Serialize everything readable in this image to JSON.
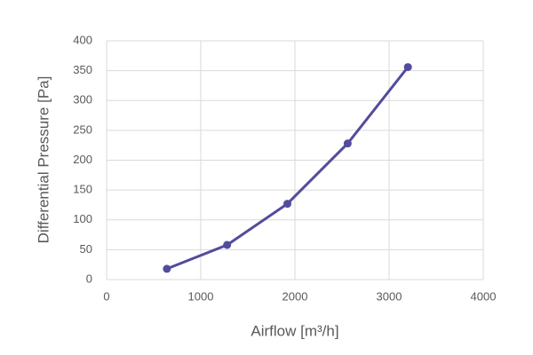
{
  "chart_data": {
    "type": "line",
    "xlabel": "Airflow [m³/h]",
    "ylabel": "Differential Pressure [Pa]",
    "x": [
      640,
      1280,
      1920,
      2560,
      3200
    ],
    "values": [
      18,
      58,
      127,
      228,
      356
    ],
    "color": "#524c9c",
    "xlim": [
      0,
      4000
    ],
    "xticks": [
      0,
      1000,
      2000,
      3000,
      4000
    ],
    "ylim": [
      0,
      400
    ],
    "yticks": [
      0,
      50,
      100,
      150,
      200,
      250,
      300,
      350,
      400
    ],
    "grid": true
  }
}
